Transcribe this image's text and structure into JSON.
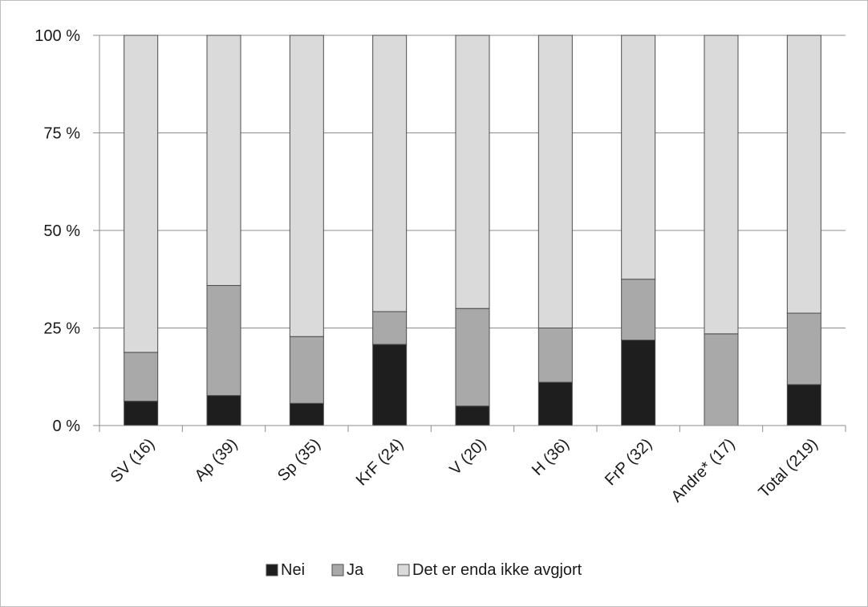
{
  "chart_data": {
    "type": "bar",
    "stacked": true,
    "categories": [
      "SV (16)",
      "Ap (39)",
      "Sp (35)",
      "KrF (24)",
      "V (20)",
      "H (36)",
      "FrP (32)",
      "Andre* (17)",
      "Total (219)"
    ],
    "series": [
      {
        "name": "Nei",
        "color": "#1e1e1e",
        "values": [
          6.25,
          7.7,
          5.7,
          20.8,
          5.0,
          11.1,
          21.9,
          0.0,
          10.5
        ]
      },
      {
        "name": "Ja",
        "color": "#a9a9a9",
        "values": [
          12.5,
          28.2,
          17.1,
          8.4,
          25.0,
          13.9,
          15.6,
          23.5,
          18.3
        ]
      },
      {
        "name": "Det er enda ikke avgjort",
        "color": "#dadada",
        "values": [
          81.25,
          64.1,
          77.2,
          70.8,
          70.0,
          75.0,
          62.5,
          76.5,
          71.2
        ]
      }
    ],
    "yticks": [
      "0 %",
      "25 %",
      "50 %",
      "75 %",
      "100 %"
    ],
    "ylim": [
      0,
      100
    ],
    "grid": true,
    "legend": "bottom",
    "title": "",
    "xlabel": "",
    "ylabel": ""
  }
}
